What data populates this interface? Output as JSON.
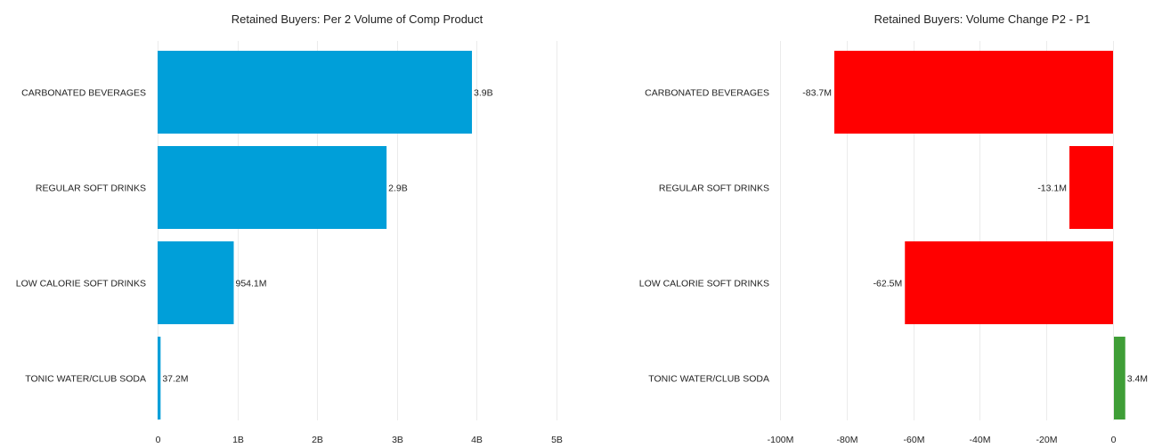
{
  "chart_data": [
    {
      "type": "bar",
      "orientation": "horizontal",
      "title": "Retained Buyers: Per 2 Volume of Comp Product",
      "categories": [
        "CARBONATED BEVERAGES",
        "REGULAR SOFT DRINKS",
        "LOW CALORIE SOFT DRINKS",
        "TONIC WATER/CLUB SODA"
      ],
      "values": [
        3940000000,
        2870000000,
        954100000,
        37200000
      ],
      "value_labels": [
        "3.9B",
        "2.9B",
        "954.1M",
        "37.2M"
      ],
      "xlim": [
        0,
        5000000000
      ],
      "xticks": [
        0,
        1000000000,
        2000000000,
        3000000000,
        4000000000,
        5000000000
      ],
      "xtick_labels": [
        "0",
        "1B",
        "2B",
        "3B",
        "4B",
        "5B"
      ],
      "grid": true,
      "colors": {
        "bar": "#009fd9"
      },
      "xlabel": "",
      "ylabel": ""
    },
    {
      "type": "bar",
      "orientation": "horizontal",
      "title": "Retained Buyers: Volume Change P2 - P1",
      "categories": [
        "CARBONATED BEVERAGES",
        "REGULAR SOFT DRINKS",
        "LOW CALORIE SOFT DRINKS",
        "TONIC WATER/CLUB SODA"
      ],
      "values": [
        -83700000,
        -13100000,
        -62500000,
        3400000
      ],
      "value_labels": [
        "-83.7M",
        "-13.1M",
        "-62.5M",
        "3.4M"
      ],
      "xlim": [
        -100000000,
        0
      ],
      "xticks": [
        -100000000,
        -80000000,
        -60000000,
        -40000000,
        -20000000,
        0
      ],
      "xtick_labels": [
        "-100M",
        "-80M",
        "-60M",
        "-40M",
        "-20M",
        "0"
      ],
      "grid": true,
      "colors": {
        "negative": "#ff0000",
        "positive": "#3f9e37"
      },
      "xlabel": "",
      "ylabel": ""
    }
  ]
}
